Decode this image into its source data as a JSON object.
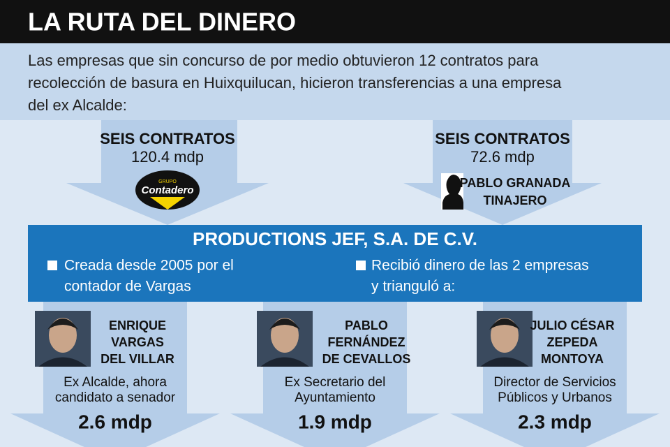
{
  "header": {
    "title": "LA RUTA DEL DINERO"
  },
  "intro": {
    "lines": [
      "Las empresas que sin concurso de por medio obtuvieron 12 contratos para",
      "recolección de basura en Huixquilucan, hicieron transferencias a una empresa",
      "del ex Alcalde:"
    ]
  },
  "sources": [
    {
      "heading": "SEIS CONTRATOS",
      "amount": "120.4 mdp",
      "logo": {
        "small": "GRUPO",
        "name": "Contadero"
      }
    },
    {
      "heading": "SEIS CONTRATOS",
      "amount": "72.6 mdp",
      "name": [
        "PABLO GRANADA",
        "TINAJERO"
      ]
    }
  ],
  "company": {
    "name": "PRODUCTIONS JEF, S.A. DE C.V.",
    "bullets": [
      [
        "Creada desde 2005 por el",
        "contador de Vargas"
      ],
      [
        "Recibió dinero de las 2 empresas",
        "y trianguló a:"
      ]
    ]
  },
  "recipients": [
    {
      "name": [
        "ENRIQUE",
        "VARGAS",
        "DEL VILLAR"
      ],
      "description": [
        "Ex Alcalde, ahora",
        "candidato a senador"
      ],
      "amount": "2.6 mdp"
    },
    {
      "name": [
        "PABLO",
        "FERNÁNDEZ",
        "DE CEVALLOS"
      ],
      "description": [
        "Ex Secretario del",
        "Ayuntamiento"
      ],
      "amount": "1.9 mdp"
    },
    {
      "name": [
        "JULIO CÉSAR",
        "ZEPEDA",
        "MONTOYA"
      ],
      "description": [
        "Director de Servicios",
        "Públicos y Urbanos"
      ],
      "amount": "2.3 mdp"
    }
  ]
}
